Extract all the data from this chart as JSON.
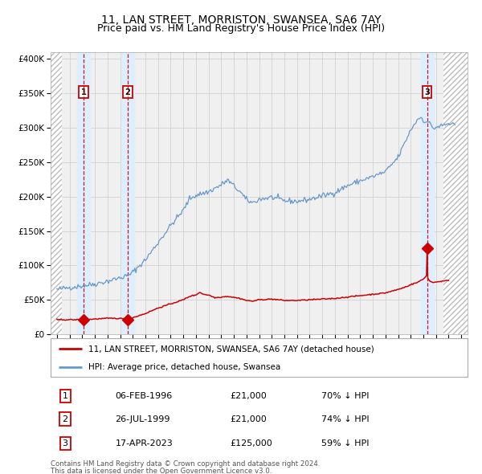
{
  "title": "11, LAN STREET, MORRISTON, SWANSEA, SA6 7AY",
  "subtitle": "Price paid vs. HM Land Registry's House Price Index (HPI)",
  "hpi_label": "HPI: Average price, detached house, Swansea",
  "price_label": "11, LAN STREET, MORRISTON, SWANSEA, SA6 7AY (detached house)",
  "footer1": "Contains HM Land Registry data © Crown copyright and database right 2024.",
  "footer2": "This data is licensed under the Open Government Licence v3.0.",
  "transactions": [
    {
      "num": 1,
      "date": "06-FEB-1996",
      "year": 1996.1,
      "price": 21000,
      "pct": "70%",
      "dir": "↓"
    },
    {
      "num": 2,
      "date": "26-JUL-1999",
      "year": 1999.6,
      "price": 21000,
      "pct": "74%",
      "dir": "↓"
    },
    {
      "num": 3,
      "date": "17-APR-2023",
      "year": 2023.3,
      "price": 125000,
      "pct": "59%",
      "dir": "↓"
    }
  ],
  "xlim": [
    1993.5,
    2026.5
  ],
  "ylim": [
    0,
    410000
  ],
  "yticks": [
    0,
    50000,
    100000,
    150000,
    200000,
    250000,
    300000,
    350000,
    400000
  ],
  "ytick_labels": [
    "£0",
    "£50K",
    "£100K",
    "£150K",
    "£200K",
    "£250K",
    "£300K",
    "£350K",
    "£400K"
  ],
  "xticks": [
    1994,
    1995,
    1996,
    1997,
    1998,
    1999,
    2000,
    2001,
    2002,
    2003,
    2004,
    2005,
    2006,
    2007,
    2008,
    2009,
    2010,
    2011,
    2012,
    2013,
    2014,
    2015,
    2016,
    2017,
    2018,
    2019,
    2020,
    2021,
    2022,
    2023,
    2024,
    2025,
    2026
  ],
  "hpi_color": "#6699cc",
  "price_color": "#cc0000",
  "diamond_color": "#cc0000",
  "grid_color": "#cccccc",
  "bg_color": "#ffffff",
  "plot_bg_color": "#f0f0f0",
  "shade_color": "#ddeeff",
  "vline_color": "#cc0000",
  "box_color": "#cc0000",
  "hatch_start": 1994.42,
  "hatch_end": 2024.58,
  "title_fontsize": 10,
  "subtitle_fontsize": 9
}
